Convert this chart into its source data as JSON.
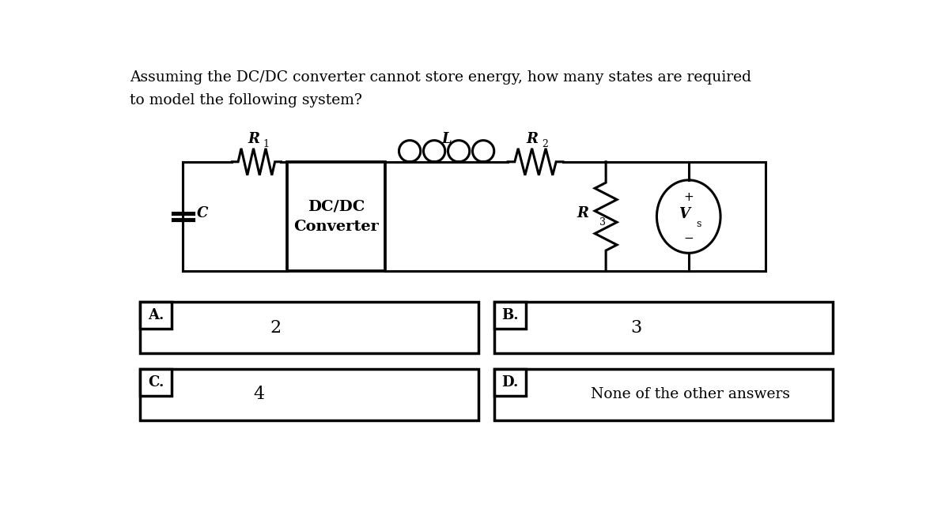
{
  "question_line1": "Assuming the DC/DC converter cannot store energy, how many states are required",
  "question_line2": "to model the following system?",
  "answer_A_label": "A.",
  "answer_A_value": "2",
  "answer_B_label": "B.",
  "answer_B_value": "3",
  "answer_C_label": "C.",
  "answer_C_value": "4",
  "answer_D_label": "D.",
  "answer_D_value": "None of the other answers",
  "bg_color": "#ffffff",
  "text_color": "#000000",
  "converter_text": "DC/DC\nConverter"
}
